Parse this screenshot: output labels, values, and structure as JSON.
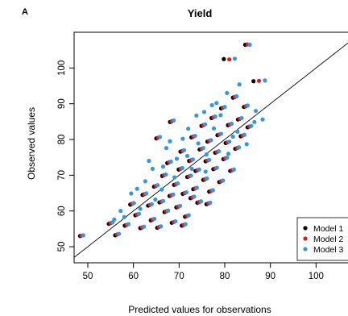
{
  "chart_data": {
    "type": "scatter",
    "panel_label": "A",
    "title": "Yield",
    "xlabel": "Predicted values for observations",
    "ylabel": "Observed values",
    "xlim": [
      47,
      107
    ],
    "ylim": [
      45.5,
      110
    ],
    "xticks": [
      50,
      60,
      70,
      80,
      90,
      100
    ],
    "yticks": [
      50,
      60,
      70,
      80,
      90,
      100
    ],
    "grid": false,
    "reference_line": "y = x",
    "legend_position": "bottom-right",
    "colors": {
      "model1": "#000000",
      "model2": "#e31a1c",
      "model3": "#3399dd"
    },
    "series": [
      {
        "name": "Model 1",
        "color": "#000000",
        "points": [
          [
            48.3,
            53.0
          ],
          [
            54.6,
            56.4
          ],
          [
            56.0,
            53.2
          ],
          [
            58.1,
            55.9
          ],
          [
            59.3,
            61.8
          ],
          [
            60.4,
            58.8
          ],
          [
            61.5,
            55.2
          ],
          [
            62.0,
            64.5
          ],
          [
            63.2,
            61.5
          ],
          [
            63.8,
            57.4
          ],
          [
            64.5,
            66.8
          ],
          [
            65.2,
            55.3
          ],
          [
            65.7,
            62.4
          ],
          [
            66.3,
            69.8
          ],
          [
            66.8,
            59.7
          ],
          [
            67.4,
            73.4
          ],
          [
            67.9,
            64.2
          ],
          [
            68.4,
            56.7
          ],
          [
            68.9,
            67.3
          ],
          [
            69.4,
            61.0
          ],
          [
            69.9,
            71.6
          ],
          [
            70.3,
            76.6
          ],
          [
            70.8,
            64.8
          ],
          [
            71.3,
            58.4
          ],
          [
            71.8,
            69.5
          ],
          [
            72.2,
            74.0
          ],
          [
            72.7,
            80.6
          ],
          [
            73.1,
            66.1
          ],
          [
            73.6,
            71.2
          ],
          [
            74.0,
            62.3
          ],
          [
            74.5,
            77.2
          ],
          [
            74.9,
            83.8
          ],
          [
            75.3,
            68.7
          ],
          [
            75.8,
            73.9
          ],
          [
            76.2,
            79.4
          ],
          [
            76.6,
            65.4
          ],
          [
            77.1,
            86.0
          ],
          [
            77.5,
            71.7
          ],
          [
            77.9,
            76.3
          ],
          [
            78.4,
            81.2
          ],
          [
            78.8,
            68.1
          ],
          [
            79.2,
            88.7
          ],
          [
            79.7,
            74.5
          ],
          [
            80.2,
            79.0
          ],
          [
            80.7,
            84.0
          ],
          [
            81.2,
            71.2
          ],
          [
            81.8,
            91.7
          ],
          [
            82.3,
            77.4
          ],
          [
            82.9,
            85.6
          ],
          [
            83.5,
            80.9
          ],
          [
            84.2,
            89.1
          ],
          [
            85.0,
            83.4
          ],
          [
            79.8,
            102.5
          ],
          [
            84.5,
            106.5
          ],
          [
            86.3,
            96.3
          ],
          [
            65.0,
            80.3
          ],
          [
            68.0,
            84.9
          ],
          [
            72.5,
            63.6
          ],
          [
            76.0,
            61.9
          ],
          [
            70.6,
            55.9
          ]
        ]
      },
      {
        "name": "Model 2",
        "color": "#e31a1c",
        "points": [
          [
            48.6,
            53.1
          ],
          [
            55.0,
            56.6
          ],
          [
            56.4,
            53.4
          ],
          [
            58.5,
            56.1
          ],
          [
            59.7,
            62.0
          ],
          [
            60.8,
            59.0
          ],
          [
            61.9,
            55.4
          ],
          [
            62.4,
            64.7
          ],
          [
            63.6,
            61.7
          ],
          [
            64.2,
            57.6
          ],
          [
            64.9,
            67.0
          ],
          [
            65.6,
            55.5
          ],
          [
            66.1,
            62.6
          ],
          [
            66.7,
            70.0
          ],
          [
            67.2,
            59.9
          ],
          [
            67.8,
            73.6
          ],
          [
            68.3,
            64.4
          ],
          [
            68.8,
            56.9
          ],
          [
            69.3,
            67.5
          ],
          [
            69.8,
            61.2
          ],
          [
            70.3,
            71.8
          ],
          [
            70.7,
            76.8
          ],
          [
            71.2,
            65.0
          ],
          [
            71.7,
            58.6
          ],
          [
            72.2,
            69.7
          ],
          [
            72.6,
            74.2
          ],
          [
            73.1,
            80.8
          ],
          [
            73.5,
            66.3
          ],
          [
            74.0,
            71.4
          ],
          [
            74.4,
            62.5
          ],
          [
            74.9,
            77.4
          ],
          [
            75.3,
            84.0
          ],
          [
            75.7,
            68.9
          ],
          [
            76.2,
            74.1
          ],
          [
            76.6,
            79.6
          ],
          [
            77.0,
            65.6
          ],
          [
            77.5,
            86.2
          ],
          [
            77.9,
            71.9
          ],
          [
            78.3,
            76.5
          ],
          [
            78.8,
            81.4
          ],
          [
            79.2,
            68.3
          ],
          [
            79.6,
            88.9
          ],
          [
            80.1,
            74.7
          ],
          [
            80.6,
            79.2
          ],
          [
            81.1,
            84.2
          ],
          [
            81.6,
            71.4
          ],
          [
            82.2,
            91.9
          ],
          [
            82.7,
            77.6
          ],
          [
            83.3,
            85.8
          ],
          [
            83.9,
            81.1
          ],
          [
            84.6,
            89.3
          ],
          [
            85.4,
            83.6
          ],
          [
            81.0,
            102.4
          ],
          [
            85.0,
            106.6
          ],
          [
            87.5,
            96.4
          ],
          [
            65.4,
            80.5
          ],
          [
            68.4,
            85.1
          ],
          [
            72.9,
            63.8
          ],
          [
            76.4,
            62.1
          ],
          [
            71.0,
            56.1
          ]
        ]
      },
      {
        "name": "Model 3",
        "color": "#3399dd",
        "points": [
          [
            49.0,
            53.2
          ],
          [
            55.4,
            56.8
          ],
          [
            56.8,
            53.6
          ],
          [
            58.9,
            56.3
          ],
          [
            60.1,
            62.2
          ],
          [
            61.2,
            59.2
          ],
          [
            62.3,
            55.6
          ],
          [
            62.8,
            64.9
          ],
          [
            64.0,
            61.9
          ],
          [
            64.6,
            57.8
          ],
          [
            65.3,
            67.2
          ],
          [
            66.0,
            55.7
          ],
          [
            66.5,
            62.8
          ],
          [
            67.1,
            70.2
          ],
          [
            67.6,
            60.1
          ],
          [
            68.2,
            73.8
          ],
          [
            68.7,
            64.6
          ],
          [
            69.2,
            57.1
          ],
          [
            69.7,
            67.7
          ],
          [
            70.2,
            61.4
          ],
          [
            70.7,
            72.0
          ],
          [
            71.1,
            77.0
          ],
          [
            71.6,
            65.2
          ],
          [
            72.1,
            58.8
          ],
          [
            72.6,
            69.9
          ],
          [
            73.0,
            74.4
          ],
          [
            73.5,
            81.0
          ],
          [
            73.9,
            66.5
          ],
          [
            74.4,
            71.6
          ],
          [
            74.8,
            62.7
          ],
          [
            75.3,
            77.6
          ],
          [
            75.7,
            84.2
          ],
          [
            76.1,
            69.1
          ],
          [
            76.6,
            74.3
          ],
          [
            77.0,
            79.8
          ],
          [
            77.4,
            65.8
          ],
          [
            77.9,
            86.4
          ],
          [
            78.3,
            72.1
          ],
          [
            78.7,
            76.7
          ],
          [
            79.2,
            81.6
          ],
          [
            79.6,
            68.5
          ],
          [
            80.0,
            89.1
          ],
          [
            80.5,
            74.9
          ],
          [
            81.0,
            79.4
          ],
          [
            81.5,
            84.4
          ],
          [
            82.0,
            71.6
          ],
          [
            82.6,
            92.1
          ],
          [
            83.1,
            77.8
          ],
          [
            83.7,
            86.0
          ],
          [
            84.3,
            81.3
          ],
          [
            85.0,
            89.5
          ],
          [
            85.8,
            83.8
          ],
          [
            82.2,
            102.6
          ],
          [
            85.5,
            106.5
          ],
          [
            88.8,
            96.5
          ],
          [
            65.8,
            80.7
          ],
          [
            68.8,
            85.3
          ],
          [
            73.3,
            64.0
          ],
          [
            76.8,
            62.3
          ],
          [
            71.4,
            56.3
          ],
          [
            66.5,
            72.4
          ],
          [
            69.5,
            74.6
          ],
          [
            71.8,
            75.4
          ],
          [
            74.2,
            78.9
          ],
          [
            75.8,
            71.0
          ],
          [
            77.6,
            83.1
          ],
          [
            79.1,
            86.8
          ],
          [
            80.8,
            76.0
          ],
          [
            82.8,
            82.2
          ],
          [
            84.8,
            78.7
          ],
          [
            86.5,
            84.9
          ],
          [
            78.2,
            90.2
          ],
          [
            73.8,
            86.7
          ],
          [
            70.8,
            80.2
          ],
          [
            67.2,
            77.6
          ],
          [
            64.2,
            71.8
          ],
          [
            62.6,
            68.3
          ],
          [
            60.8,
            66.2
          ],
          [
            63.4,
            74.0
          ],
          [
            68.0,
            79.5
          ],
          [
            72.0,
            83.0
          ],
          [
            75.5,
            87.7
          ],
          [
            77.2,
            89.6
          ],
          [
            80.5,
            93.0
          ],
          [
            83.2,
            95.4
          ],
          [
            86.8,
            88.0
          ],
          [
            88.3,
            85.6
          ],
          [
            81.8,
            80.8
          ],
          [
            76.0,
            75.8
          ],
          [
            72.8,
            71.8
          ],
          [
            69.0,
            69.4
          ],
          [
            66.2,
            66.0
          ],
          [
            64.8,
            63.2
          ],
          [
            61.5,
            60.6
          ],
          [
            58.0,
            58.3
          ],
          [
            55.8,
            57.6
          ],
          [
            59.5,
            64.9
          ],
          [
            57.2,
            60.0
          ]
        ]
      }
    ]
  }
}
